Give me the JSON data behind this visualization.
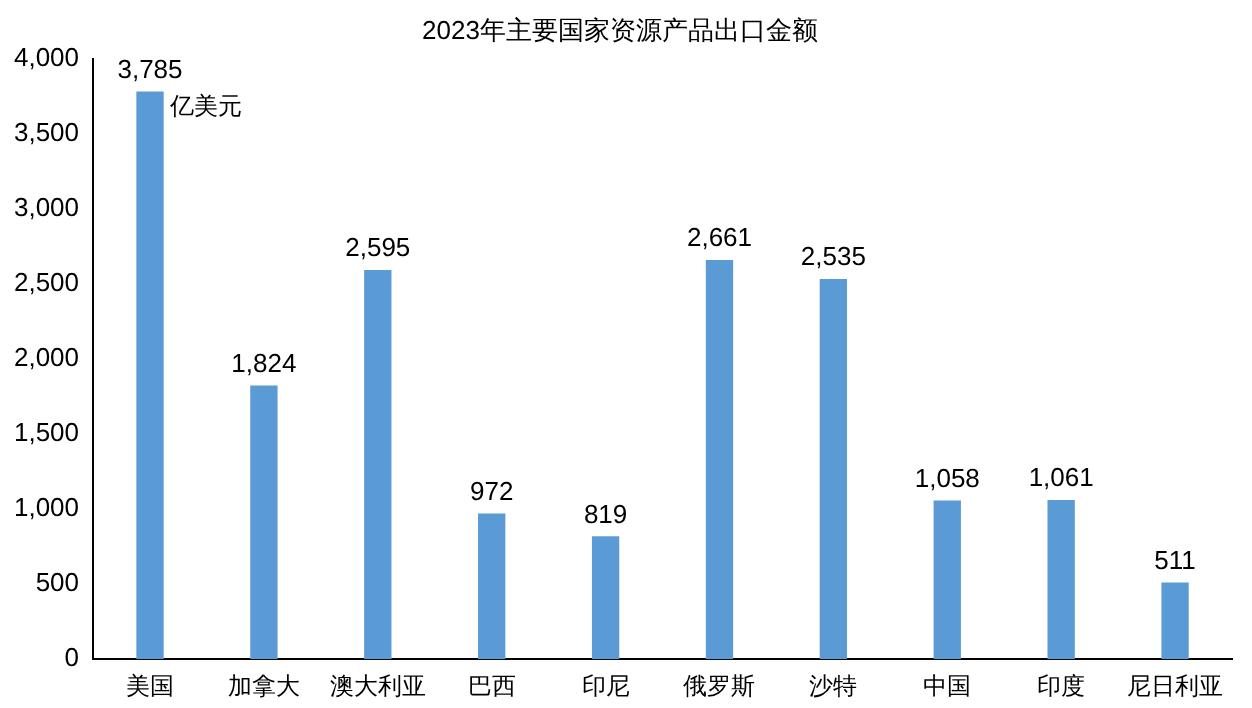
{
  "chart_data": {
    "type": "bar",
    "title": "2023年主要国家资源产品出口金额",
    "categories": [
      "美国",
      "加拿大",
      "澳大利亚",
      "巴西",
      "印尼",
      "俄罗斯",
      "沙特",
      "中国",
      "印度",
      "尼日利亚"
    ],
    "values": [
      3785,
      1824,
      2595,
      972,
      819,
      2661,
      2535,
      1058,
      1061,
      511
    ],
    "value_labels": [
      "3,785",
      "1,824",
      "2,595",
      "972",
      "819",
      "2,661",
      "2,535",
      "1,058",
      "1,061",
      "511"
    ],
    "color": "#5b9bd5",
    "ylim": [
      0,
      4000
    ],
    "yticks": [
      {
        "value": 0,
        "label": "0"
      },
      {
        "value": 500,
        "label": "500"
      },
      {
        "value": 1000,
        "label": "1,000"
      },
      {
        "value": 1500,
        "label": "1,500"
      },
      {
        "value": 2000,
        "label": "2,000"
      },
      {
        "value": 2500,
        "label": "2,500"
      },
      {
        "value": 3000,
        "label": "3,000"
      },
      {
        "value": 3500,
        "label": "3,500"
      },
      {
        "value": 4000,
        "label": "4,000"
      }
    ],
    "annotations": [
      "亿美元"
    ],
    "grid": false,
    "legend": false
  }
}
